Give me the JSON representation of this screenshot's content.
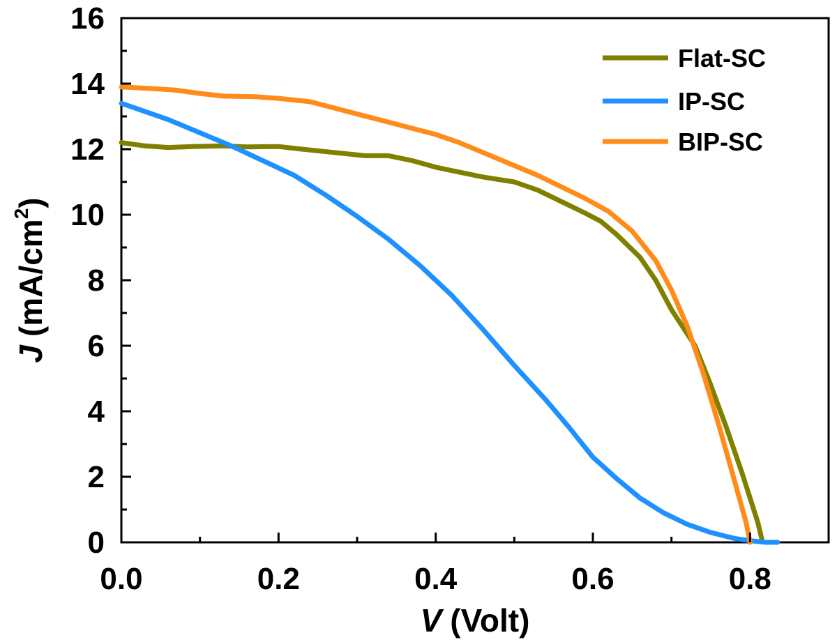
{
  "chart_data": {
    "type": "line",
    "title": "",
    "xlabel": "V (Volt)",
    "xlabel_var": "V",
    "xlabel_unit": "(Volt)",
    "ylabel": "J (mA/cm2)",
    "ylabel_var": "J",
    "ylabel_unit": "(mA/cm",
    "ylabel_sup": "2",
    "ylabel_close": ")",
    "xlim": [
      0,
      0.9
    ],
    "ylim": [
      0,
      16
    ],
    "xticks": [
      0.0,
      0.2,
      0.4,
      0.6,
      0.8
    ],
    "xtick_labels": [
      "0.0",
      "0.2",
      "0.4",
      "0.6",
      "0.8"
    ],
    "yticks": [
      0,
      2,
      4,
      6,
      8,
      10,
      12,
      14,
      16
    ],
    "ytick_labels": [
      "0",
      "2",
      "4",
      "6",
      "8",
      "10",
      "12",
      "14",
      "16"
    ],
    "legend_position": "top-right",
    "grid": false,
    "series": [
      {
        "name": "Flat-SC",
        "color": "#808000",
        "x": [
          0.0,
          0.03,
          0.06,
          0.09,
          0.13,
          0.16,
          0.2,
          0.23,
          0.27,
          0.31,
          0.34,
          0.37,
          0.4,
          0.43,
          0.46,
          0.5,
          0.53,
          0.56,
          0.59,
          0.61,
          0.63,
          0.66,
          0.68,
          0.7,
          0.73,
          0.75,
          0.77,
          0.79,
          0.81,
          0.815
        ],
        "y": [
          12.2,
          12.1,
          12.05,
          12.08,
          12.1,
          12.07,
          12.08,
          12.0,
          11.9,
          11.8,
          11.8,
          11.65,
          11.45,
          11.3,
          11.15,
          11.0,
          10.75,
          10.4,
          10.05,
          9.8,
          9.4,
          8.7,
          8.0,
          7.1,
          6.0,
          4.8,
          3.5,
          2.1,
          0.6,
          0.1
        ]
      },
      {
        "name": "IP-SC",
        "color": "#1e90ff",
        "x": [
          0.0,
          0.03,
          0.06,
          0.1,
          0.14,
          0.18,
          0.22,
          0.26,
          0.3,
          0.34,
          0.38,
          0.42,
          0.46,
          0.5,
          0.54,
          0.57,
          0.6,
          0.63,
          0.66,
          0.69,
          0.72,
          0.75,
          0.78,
          0.8,
          0.82,
          0.835
        ],
        "y": [
          13.4,
          13.15,
          12.9,
          12.5,
          12.1,
          11.65,
          11.2,
          10.6,
          9.95,
          9.25,
          8.45,
          7.55,
          6.5,
          5.4,
          4.35,
          3.5,
          2.6,
          1.95,
          1.35,
          0.9,
          0.55,
          0.3,
          0.12,
          0.05,
          0.0,
          0.0
        ]
      },
      {
        "name": "BIP-SC",
        "color": "#ff8c1a",
        "x": [
          0.0,
          0.04,
          0.07,
          0.1,
          0.13,
          0.17,
          0.2,
          0.24,
          0.28,
          0.32,
          0.36,
          0.4,
          0.43,
          0.46,
          0.5,
          0.53,
          0.56,
          0.59,
          0.62,
          0.65,
          0.68,
          0.7,
          0.72,
          0.74,
          0.76,
          0.78,
          0.795,
          0.8
        ],
        "y": [
          13.9,
          13.85,
          13.8,
          13.7,
          13.62,
          13.6,
          13.55,
          13.45,
          13.2,
          12.95,
          12.7,
          12.45,
          12.2,
          11.9,
          11.5,
          11.2,
          10.85,
          10.5,
          10.1,
          9.5,
          8.6,
          7.7,
          6.6,
          5.2,
          3.6,
          1.9,
          0.6,
          0.0
        ]
      }
    ]
  }
}
